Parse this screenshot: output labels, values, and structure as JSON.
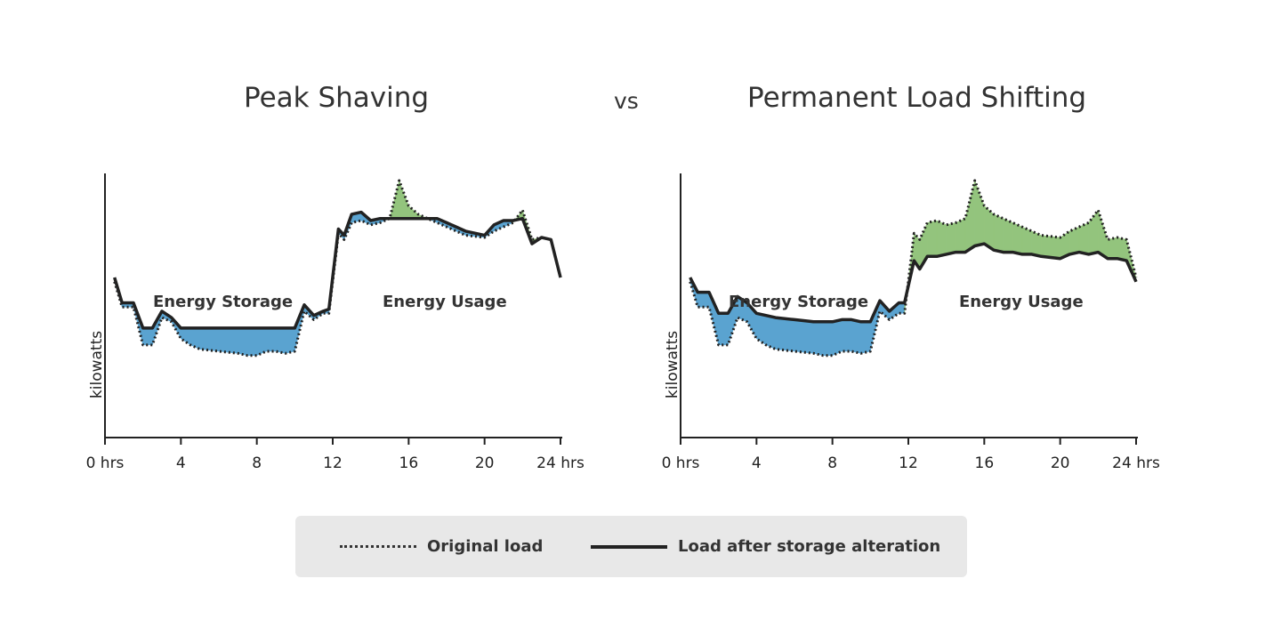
{
  "header": {
    "left_title": "Peak Shaving",
    "vs": "vs",
    "right_title": "Permanent Load Shifting"
  },
  "legend": {
    "original_label": "Original load",
    "altered_label": "Load after storage alteration"
  },
  "colors": {
    "storage": "#5aa3d0",
    "usage": "#93c47d",
    "line": "#222222"
  },
  "chart_data": [
    {
      "type": "line",
      "title": "Peak Shaving",
      "ylabel": "kilowatts",
      "xlim": [
        0,
        24
      ],
      "ylim": [
        0,
        100
      ],
      "xticks": [
        0,
        4,
        8,
        12,
        16,
        20,
        24
      ],
      "xtick_labels": [
        "0 hrs",
        "4",
        "8",
        "12",
        "16",
        "20",
        "24 hrs"
      ],
      "annotations": {
        "storage": "Energy Storage",
        "usage": "Energy Usage"
      },
      "series": [
        {
          "name": "Original load",
          "style": "dotted",
          "x": [
            0.5,
            0.9,
            1.5,
            2.0,
            2.5,
            3.0,
            3.5,
            4.0,
            4.5,
            5.0,
            6.0,
            7.0,
            7.5,
            8.0,
            8.5,
            9.0,
            9.5,
            10.0,
            10.5,
            11.0,
            11.5,
            11.8,
            12.3,
            12.6,
            13.0,
            13.5,
            14.0,
            14.5,
            15.0,
            15.5,
            16.0,
            16.5,
            17.0,
            17.5,
            18.0,
            18.5,
            19.0,
            20.0,
            20.5,
            21.0,
            21.5,
            22.0,
            22.5,
            23.0,
            23.5,
            24.0
          ],
          "y": [
            52,
            40,
            40,
            22,
            22,
            35,
            33,
            25,
            22,
            20,
            19,
            18,
            17,
            17,
            19,
            19,
            18,
            19,
            38,
            34,
            37,
            37,
            75,
            72,
            80,
            81,
            79,
            80,
            82,
            100,
            88,
            84,
            82,
            80,
            78,
            76,
            74,
            73,
            76,
            78,
            80,
            86,
            72,
            73,
            72,
            54
          ]
        },
        {
          "name": "Load after storage alteration",
          "style": "solid",
          "x": [
            0.5,
            0.9,
            1.5,
            2.0,
            2.5,
            3.0,
            3.5,
            4.0,
            4.5,
            5.0,
            6.0,
            7.0,
            7.5,
            8.0,
            8.5,
            9.0,
            9.5,
            10.0,
            10.5,
            11.0,
            11.5,
            11.8,
            12.3,
            12.6,
            13.0,
            13.5,
            14.0,
            14.5,
            15.0,
            15.5,
            16.0,
            16.5,
            17.0,
            17.5,
            18.0,
            18.5,
            19.0,
            20.0,
            20.5,
            21.0,
            21.5,
            22.0,
            22.5,
            23.0,
            23.5,
            24.0
          ],
          "y": [
            54,
            42,
            42,
            30,
            30,
            38,
            35,
            30,
            30,
            30,
            30,
            30,
            30,
            30,
            30,
            30,
            30,
            30,
            41,
            36,
            38,
            39,
            77,
            74,
            84,
            85,
            81,
            82,
            82,
            82,
            82,
            82,
            82,
            82,
            80,
            78,
            76,
            74,
            79,
            81,
            81,
            82,
            70,
            73,
            72,
            54
          ]
        }
      ]
    },
    {
      "type": "line",
      "title": "Permanent Load Shifting",
      "ylabel": "kilowatts",
      "xlim": [
        0,
        24
      ],
      "ylim": [
        0,
        100
      ],
      "xticks": [
        0,
        4,
        8,
        12,
        16,
        20,
        24
      ],
      "xtick_labels": [
        "0 hrs",
        "4",
        "8",
        "12",
        "16",
        "20",
        "24 hrs"
      ],
      "annotations": {
        "storage": "Energy Storage",
        "usage": "Energy Usage"
      },
      "series": [
        {
          "name": "Original load",
          "style": "dotted",
          "x": [
            0.5,
            0.9,
            1.5,
            2.0,
            2.5,
            3.0,
            3.5,
            4.0,
            4.5,
            5.0,
            6.0,
            7.0,
            7.5,
            8.0,
            8.5,
            9.0,
            9.5,
            10.0,
            10.5,
            11.0,
            11.5,
            11.8,
            12.3,
            12.6,
            13.0,
            13.5,
            14.0,
            14.5,
            15.0,
            15.5,
            16.0,
            16.5,
            17.0,
            17.5,
            18.0,
            18.5,
            19.0,
            20.0,
            20.5,
            21.0,
            21.5,
            22.0,
            22.5,
            23.0,
            23.5,
            24.0
          ],
          "y": [
            52,
            40,
            40,
            22,
            22,
            35,
            33,
            25,
            22,
            20,
            19,
            18,
            17,
            17,
            19,
            19,
            18,
            19,
            38,
            34,
            37,
            37,
            75,
            72,
            80,
            81,
            79,
            80,
            82,
            100,
            88,
            84,
            82,
            80,
            78,
            76,
            74,
            73,
            76,
            78,
            80,
            86,
            72,
            73,
            72,
            54
          ]
        },
        {
          "name": "Load after storage alteration",
          "style": "solid",
          "x": [
            0.5,
            0.9,
            1.5,
            2.0,
            2.5,
            3.0,
            3.5,
            4.0,
            4.5,
            5.0,
            6.0,
            7.0,
            7.5,
            8.0,
            8.5,
            9.0,
            9.5,
            10.0,
            10.5,
            11.0,
            11.5,
            11.8,
            12.3,
            12.6,
            13.0,
            13.5,
            14.0,
            14.5,
            15.0,
            15.5,
            16.0,
            16.5,
            17.0,
            17.5,
            18.0,
            18.5,
            19.0,
            20.0,
            20.5,
            21.0,
            21.5,
            22.0,
            22.5,
            23.0,
            23.5,
            24.0
          ],
          "y": [
            54,
            47,
            47,
            37,
            37,
            45,
            42,
            37,
            36,
            35,
            34,
            33,
            33,
            33,
            34,
            34,
            33,
            33,
            43,
            38,
            42,
            42,
            62,
            58,
            64,
            64,
            65,
            66,
            66,
            69,
            70,
            67,
            66,
            66,
            65,
            65,
            64,
            63,
            65,
            66,
            65,
            66,
            63,
            63,
            62,
            52
          ]
        }
      ]
    }
  ]
}
